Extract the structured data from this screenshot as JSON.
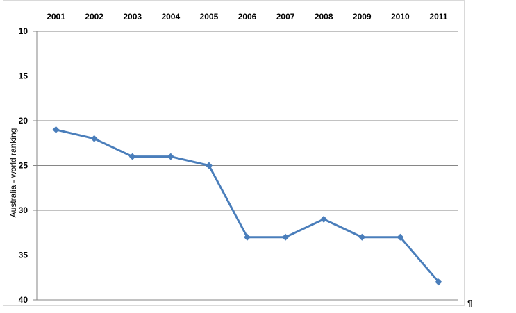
{
  "chart_data": {
    "type": "line",
    "title": "",
    "xlabel": "",
    "ylabel": "Australia - world ranking",
    "x": [
      "2001",
      "2002",
      "2003",
      "2004",
      "2005",
      "2006",
      "2007",
      "2008",
      "2009",
      "2010",
      "2011"
    ],
    "series": [
      {
        "values": [
          21,
          22,
          24,
          24,
          25,
          33,
          33,
          31,
          33,
          33,
          38
        ],
        "color": "#4a7ebb",
        "marker": "diamond"
      }
    ],
    "ylim": [
      10,
      40
    ],
    "y_reversed": true,
    "yticks": [
      "10",
      "15",
      "20",
      "25",
      "30",
      "35",
      "40"
    ],
    "grid": true,
    "legend": "none",
    "x_axis_position": "top"
  },
  "trailing_mark": "¶"
}
